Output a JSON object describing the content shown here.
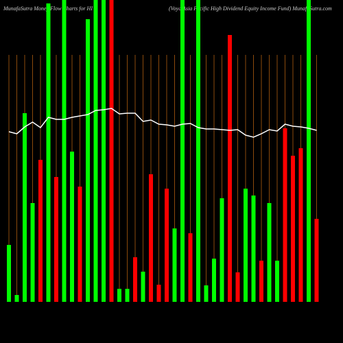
{
  "chart_data": {
    "type": "bar",
    "title": "MunafaSutra Money Flow Charts for HI",
    "subtitle": "(Voya Asia Pacific High Dividend Equity Income Fund) MunafaSutra.com",
    "categories": [
      null,
      null,
      null,
      null,
      null,
      null,
      null,
      null,
      null,
      null,
      null,
      null,
      null,
      null,
      null,
      null,
      null,
      null,
      null,
      null,
      null,
      null,
      null,
      null,
      null,
      null,
      null,
      null,
      null,
      null,
      null,
      null,
      null,
      null,
      null,
      null,
      null,
      null,
      null,
      null
    ],
    "values": [
      83,
      10,
      275,
      144,
      207,
      435,
      182,
      440,
      219,
      168,
      412,
      440,
      440,
      440,
      19,
      19,
      65,
      44,
      186,
      25,
      165,
      107,
      440,
      100,
      440,
      24,
      63,
      151,
      389,
      43,
      165,
      155,
      60,
      144,
      60,
      253,
      213,
      224,
      440,
      121
    ],
    "colors": [
      "#00ff00",
      "#00ff00",
      "#00ff00",
      "#00ff00",
      "#ff0000",
      "#00ff00",
      "#ff0000",
      "#00ff00",
      "#00ff00",
      "#ff0000",
      "#00ff00",
      "#00ff00",
      "#00ff00",
      "#ff0000",
      "#00ff00",
      "#00ff00",
      "#ff0000",
      "#00ff00",
      "#ff0000",
      "#ff0000",
      "#ff0000",
      "#00ff00",
      "#00ff00",
      "#ff0000",
      "#00ff00",
      "#00ff00",
      "#00ff00",
      "#00ff00",
      "#ff0000",
      "#ff0000",
      "#00ff00",
      "#00ff00",
      "#ff0000",
      "#00ff00",
      "#00ff00",
      "#ff0000",
      "#ff0000",
      "#ff0000",
      "#00ff00",
      "#ff0000"
    ],
    "line": {
      "color": "#ffffff",
      "values": [
        248,
        245,
        255,
        262,
        254,
        269,
        266,
        266,
        269,
        271,
        273,
        279,
        280,
        282,
        274,
        275,
        275,
        263,
        265,
        259,
        258,
        256,
        259,
        260,
        254,
        252,
        252,
        251,
        250,
        251,
        243,
        240,
        245,
        251,
        249,
        259,
        256,
        255,
        253,
        250
      ]
    },
    "ylim": [
      0,
      440
    ]
  }
}
